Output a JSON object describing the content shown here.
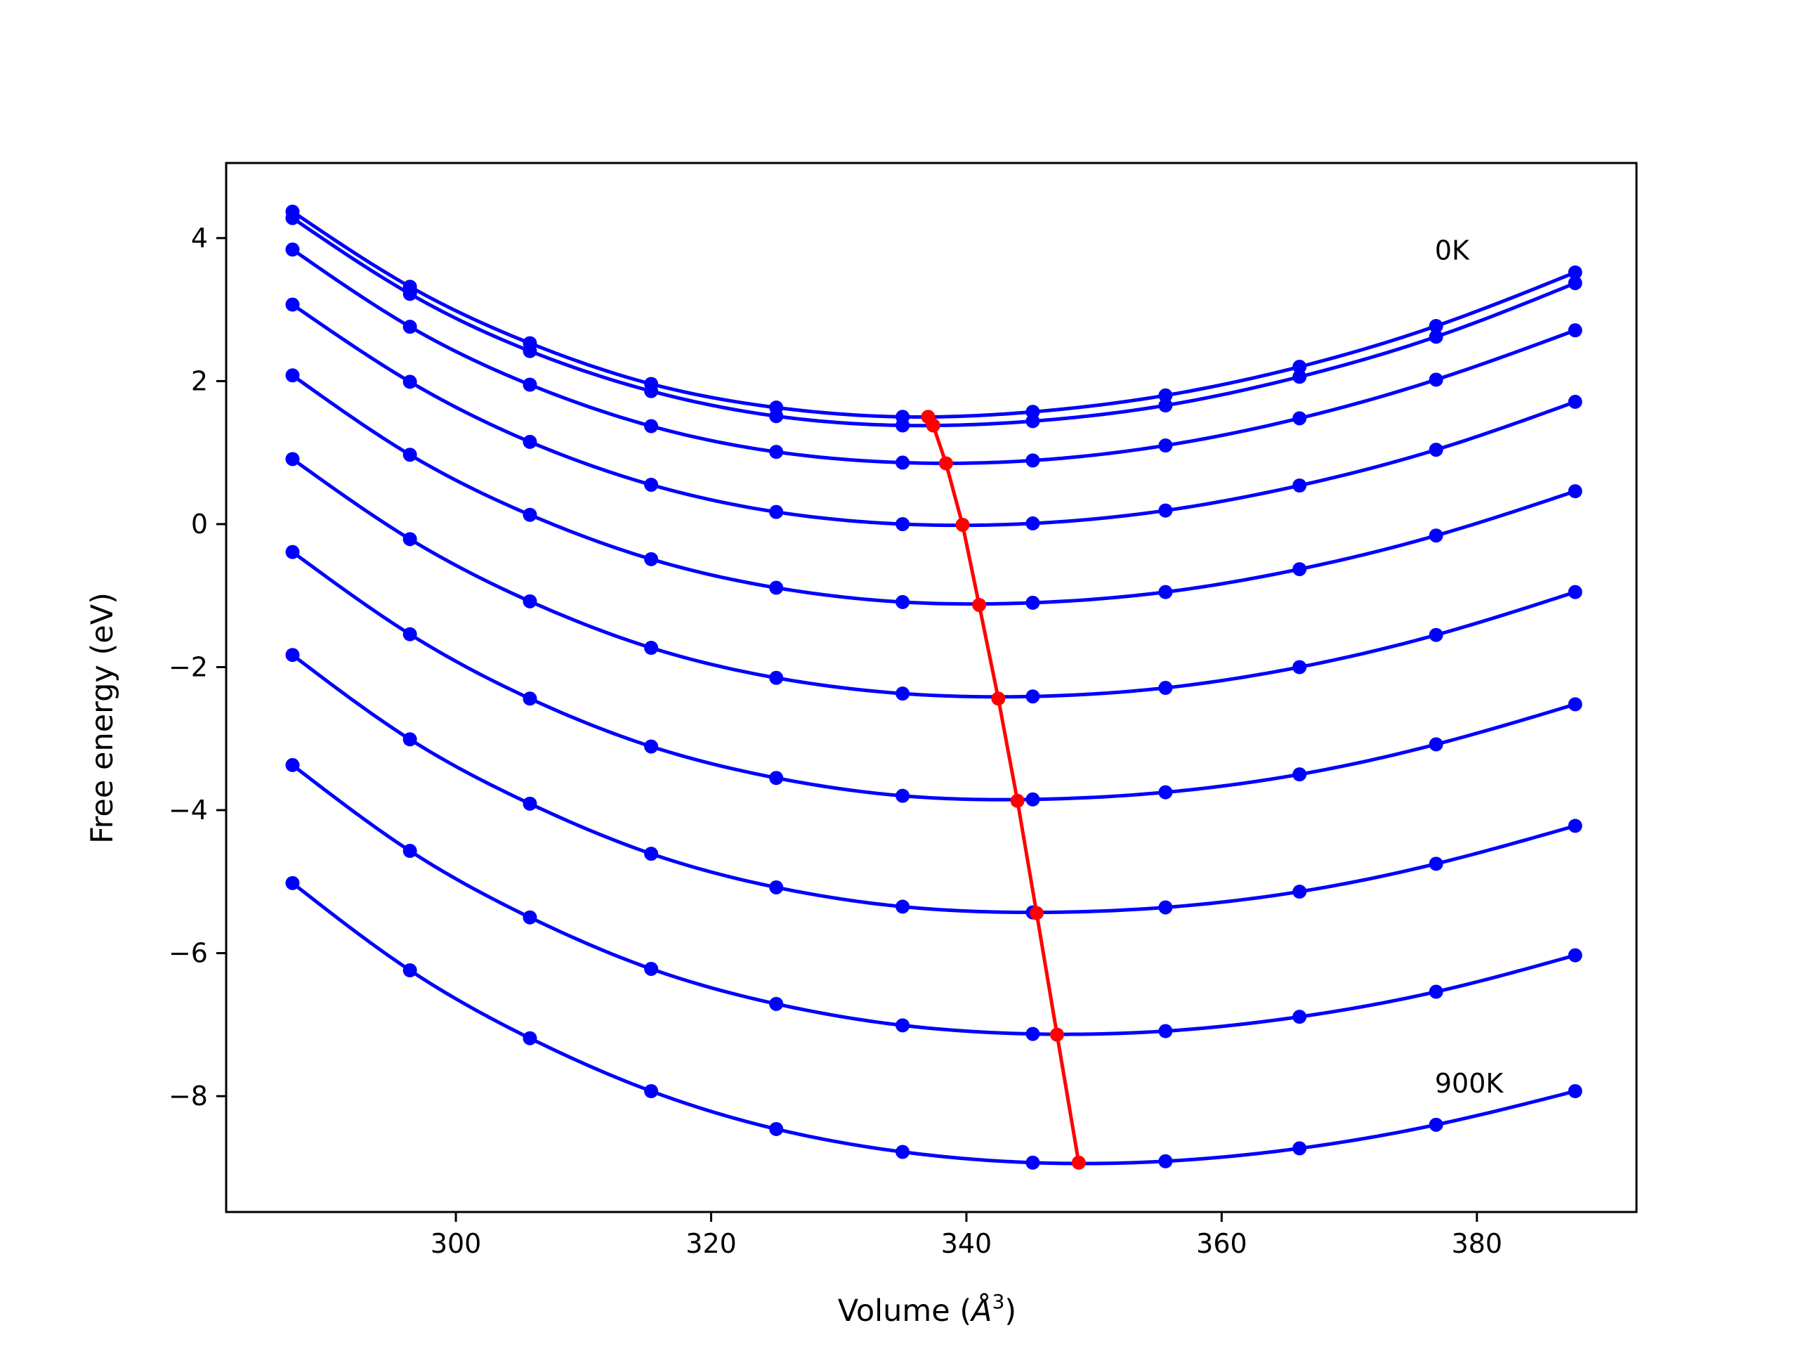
{
  "chart_data": {
    "type": "line",
    "title": "",
    "xlabel": "Volume (Å³)",
    "xlabel_main": "Volume (",
    "xlabel_unit": "Å",
    "xlabel_sup": "3",
    "xlabel_close": ")",
    "ylabel": "Free energy (eV)",
    "xlim": [
      282.0,
      392.5
    ],
    "ylim": [
      -9.62,
      5.05
    ],
    "xticks": [
      300,
      320,
      340,
      360,
      380
    ],
    "yticks": [
      4,
      2,
      0,
      -2,
      -4,
      -6,
      -8
    ],
    "xtick_labels": [
      "300",
      "320",
      "340",
      "360",
      "380"
    ],
    "ytick_labels": [
      "4",
      "2",
      "0",
      "−2",
      "−4",
      "−6",
      "−8"
    ],
    "grid": false,
    "legend": "none",
    "x": [
      287.2,
      296.4,
      305.8,
      315.3,
      325.1,
      335.0,
      345.2,
      355.6,
      366.1,
      376.8,
      387.7
    ],
    "series": [
      {
        "values": [
          4.37,
          3.32,
          2.53,
          1.96,
          1.63,
          1.5,
          1.57,
          1.8,
          2.2,
          2.77,
          3.52
        ]
      },
      {
        "values": [
          4.28,
          3.22,
          2.42,
          1.86,
          1.51,
          1.38,
          1.44,
          1.66,
          2.06,
          2.62,
          3.37
        ]
      },
      {
        "values": [
          3.84,
          2.76,
          1.95,
          1.37,
          1.01,
          0.86,
          0.89,
          1.1,
          1.48,
          2.02,
          2.71
        ]
      },
      {
        "values": [
          3.07,
          1.99,
          1.15,
          0.55,
          0.17,
          0.0,
          0.01,
          0.19,
          0.54,
          1.04,
          1.71
        ]
      },
      {
        "values": [
          2.08,
          0.97,
          0.13,
          -0.49,
          -0.89,
          -1.09,
          -1.1,
          -0.95,
          -0.63,
          -0.16,
          0.46
        ]
      },
      {
        "values": [
          0.91,
          -0.21,
          -1.08,
          -1.73,
          -2.15,
          -2.37,
          -2.41,
          -2.29,
          -2.0,
          -1.55,
          -0.95
        ]
      },
      {
        "values": [
          -0.39,
          -1.54,
          -2.44,
          -3.11,
          -3.55,
          -3.8,
          -3.85,
          -3.75,
          -3.5,
          -3.08,
          -2.52
        ]
      },
      {
        "values": [
          -1.83,
          -3.01,
          -3.91,
          -4.61,
          -5.08,
          -5.35,
          -5.43,
          -5.36,
          -5.14,
          -4.75,
          -4.22
        ]
      },
      {
        "values": [
          -3.37,
          -4.57,
          -5.5,
          -6.22,
          -6.71,
          -7.01,
          -7.13,
          -7.09,
          -6.89,
          -6.54,
          -6.03
        ]
      },
      {
        "values": [
          -5.02,
          -6.24,
          -7.19,
          -7.93,
          -8.46,
          -8.78,
          -8.93,
          -8.91,
          -8.73,
          -8.4,
          -7.93
        ]
      }
    ],
    "minimum_curve": {
      "x": [
        337.0,
        337.4,
        338.4,
        339.7,
        341.0,
        342.5,
        344.0,
        345.5,
        347.1,
        348.8
      ],
      "values": [
        1.5,
        1.38,
        0.85,
        -0.01,
        -1.13,
        -2.44,
        -3.87,
        -5.44,
        -7.14,
        -8.93
      ]
    },
    "annotations": [
      {
        "text": "0K",
        "x": 376.7,
        "y": 3.7
      },
      {
        "text": "900K",
        "x": 376.7,
        "y": -7.95
      }
    ],
    "colors": {
      "series": "#0000ff",
      "minimum_curve": "#ff0000",
      "axes": "#000000"
    }
  }
}
